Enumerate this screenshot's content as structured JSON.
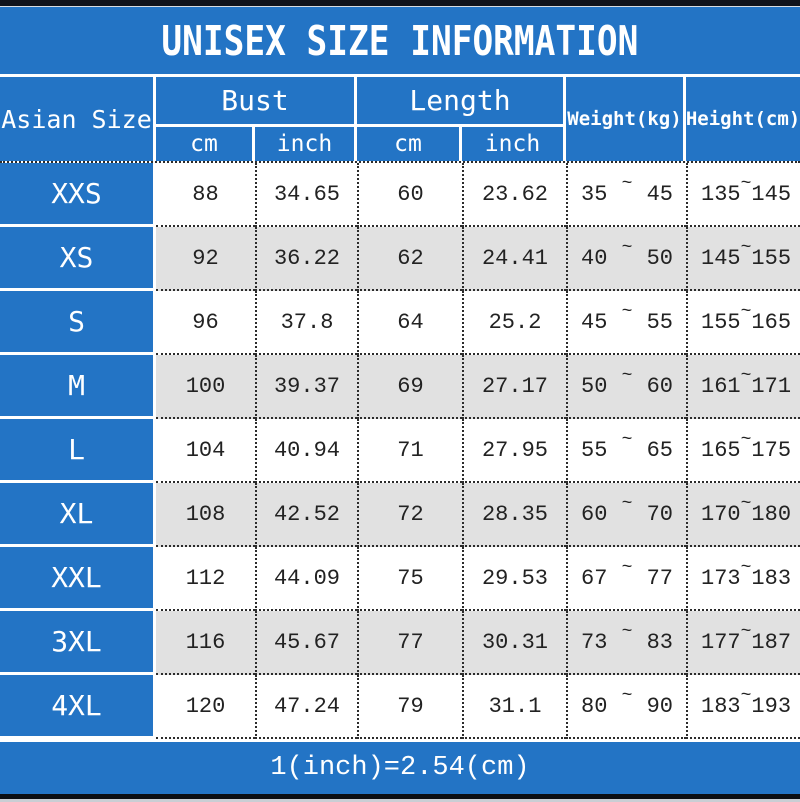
{
  "title": "UNISEX SIZE INFORMATION",
  "footer_note": "1(inch)=2.54(cm)",
  "ui": {
    "tilde": "~"
  },
  "colors": {
    "accent_blue": "#2374c5",
    "stripe_gray": "#e1e1e1",
    "top_bar": "#10131c",
    "dotted_border": "#2b2b2b"
  },
  "chart_data": {
    "type": "table",
    "title": "UNISEX SIZE INFORMATION",
    "row_header": "Asian Size",
    "groups": [
      {
        "label": "Bust",
        "sub": [
          "cm",
          "inch"
        ]
      },
      {
        "label": "Length",
        "sub": [
          "cm",
          "inch"
        ]
      }
    ],
    "spanned_headers": [
      "Weight(kg)",
      "Height(cm)"
    ],
    "rows": [
      {
        "size": "XXS",
        "bust_cm": "88",
        "bust_inch": "34.65",
        "length_cm": "60",
        "length_inch": "23.62",
        "weight_min": "35",
        "weight_max": "45",
        "height_min": "135",
        "height_max": "145"
      },
      {
        "size": "XS",
        "bust_cm": "92",
        "bust_inch": "36.22",
        "length_cm": "62",
        "length_inch": "24.41",
        "weight_min": "40",
        "weight_max": "50",
        "height_min": "145",
        "height_max": "155"
      },
      {
        "size": "S",
        "bust_cm": "96",
        "bust_inch": "37.8",
        "length_cm": "64",
        "length_inch": "25.2",
        "weight_min": "45",
        "weight_max": "55",
        "height_min": "155",
        "height_max": "165"
      },
      {
        "size": "M",
        "bust_cm": "100",
        "bust_inch": "39.37",
        "length_cm": "69",
        "length_inch": "27.17",
        "weight_min": "50",
        "weight_max": "60",
        "height_min": "161",
        "height_max": "171"
      },
      {
        "size": "L",
        "bust_cm": "104",
        "bust_inch": "40.94",
        "length_cm": "71",
        "length_inch": "27.95",
        "weight_min": "55",
        "weight_max": "65",
        "height_min": "165",
        "height_max": "175"
      },
      {
        "size": "XL",
        "bust_cm": "108",
        "bust_inch": "42.52",
        "length_cm": "72",
        "length_inch": "28.35",
        "weight_min": "60",
        "weight_max": "70",
        "height_min": "170",
        "height_max": "180"
      },
      {
        "size": "XXL",
        "bust_cm": "112",
        "bust_inch": "44.09",
        "length_cm": "75",
        "length_inch": "29.53",
        "weight_min": "67",
        "weight_max": "77",
        "height_min": "173",
        "height_max": "183"
      },
      {
        "size": "3XL",
        "bust_cm": "116",
        "bust_inch": "45.67",
        "length_cm": "77",
        "length_inch": "30.31",
        "weight_min": "73",
        "weight_max": "83",
        "height_min": "177",
        "height_max": "187"
      },
      {
        "size": "4XL",
        "bust_cm": "120",
        "bust_inch": "47.24",
        "length_cm": "79",
        "length_inch": "31.1",
        "weight_min": "80",
        "weight_max": "90",
        "height_min": "183",
        "height_max": "193"
      }
    ]
  }
}
